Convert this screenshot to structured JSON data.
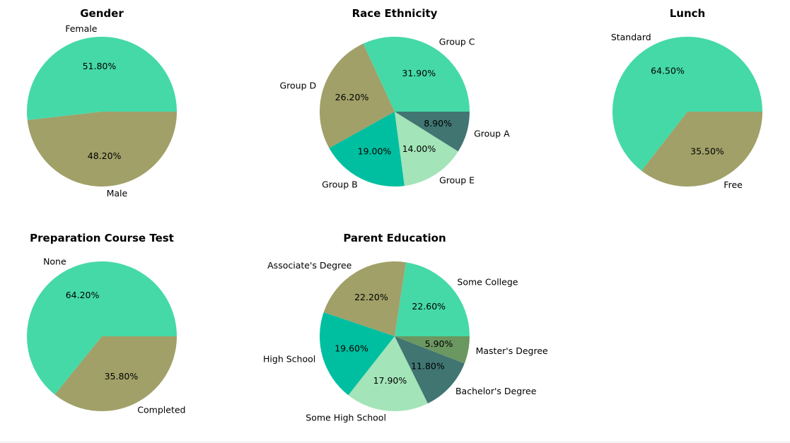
{
  "chart_data": [
    {
      "type": "pie",
      "title": "Gender",
      "labels": [
        "Female",
        "Male"
      ],
      "values": [
        51.8,
        48.2
      ],
      "pct_labels": [
        "51.80%",
        "48.20%"
      ],
      "colors": [
        "#45d9a8",
        "#a0a068"
      ]
    },
    {
      "type": "pie",
      "title": "Race Ethnicity",
      "labels": [
        "Group C",
        "Group D",
        "Group B",
        "Group E",
        "Group A"
      ],
      "values": [
        31.9,
        26.2,
        19.0,
        14.0,
        8.9
      ],
      "pct_labels": [
        "31.90%",
        "26.20%",
        "19.00%",
        "14.00%",
        "8.90%"
      ],
      "colors": [
        "#45d9a8",
        "#a0a068",
        "#00bfa0",
        "#a3e4b8",
        "#407572"
      ]
    },
    {
      "type": "pie",
      "title": "Lunch",
      "labels": [
        "Standard",
        "Free"
      ],
      "values": [
        64.5,
        35.5
      ],
      "pct_labels": [
        "64.50%",
        "35.50%"
      ],
      "colors": [
        "#45d9a8",
        "#a0a068"
      ]
    },
    {
      "type": "pie",
      "title": "Preparation Course Test",
      "labels": [
        "None",
        "Completed"
      ],
      "values": [
        64.2,
        35.8
      ],
      "pct_labels": [
        "64.20%",
        "35.80%"
      ],
      "colors": [
        "#45d9a8",
        "#a0a068"
      ]
    },
    {
      "type": "pie",
      "title": "Parent Education",
      "labels": [
        "Some College",
        "Associate's Degree",
        "High School",
        "Some High School",
        "Bachelor's Degree",
        "Master's Degree"
      ],
      "values": [
        22.6,
        22.2,
        19.6,
        17.9,
        11.8,
        5.9
      ],
      "pct_labels": [
        "22.60%",
        "22.20%",
        "19.60%",
        "17.90%",
        "11.80%",
        "5.90%"
      ],
      "colors": [
        "#45d9a8",
        "#a0a068",
        "#00bfa0",
        "#a3e4b8",
        "#407572",
        "#6b9760"
      ]
    }
  ]
}
